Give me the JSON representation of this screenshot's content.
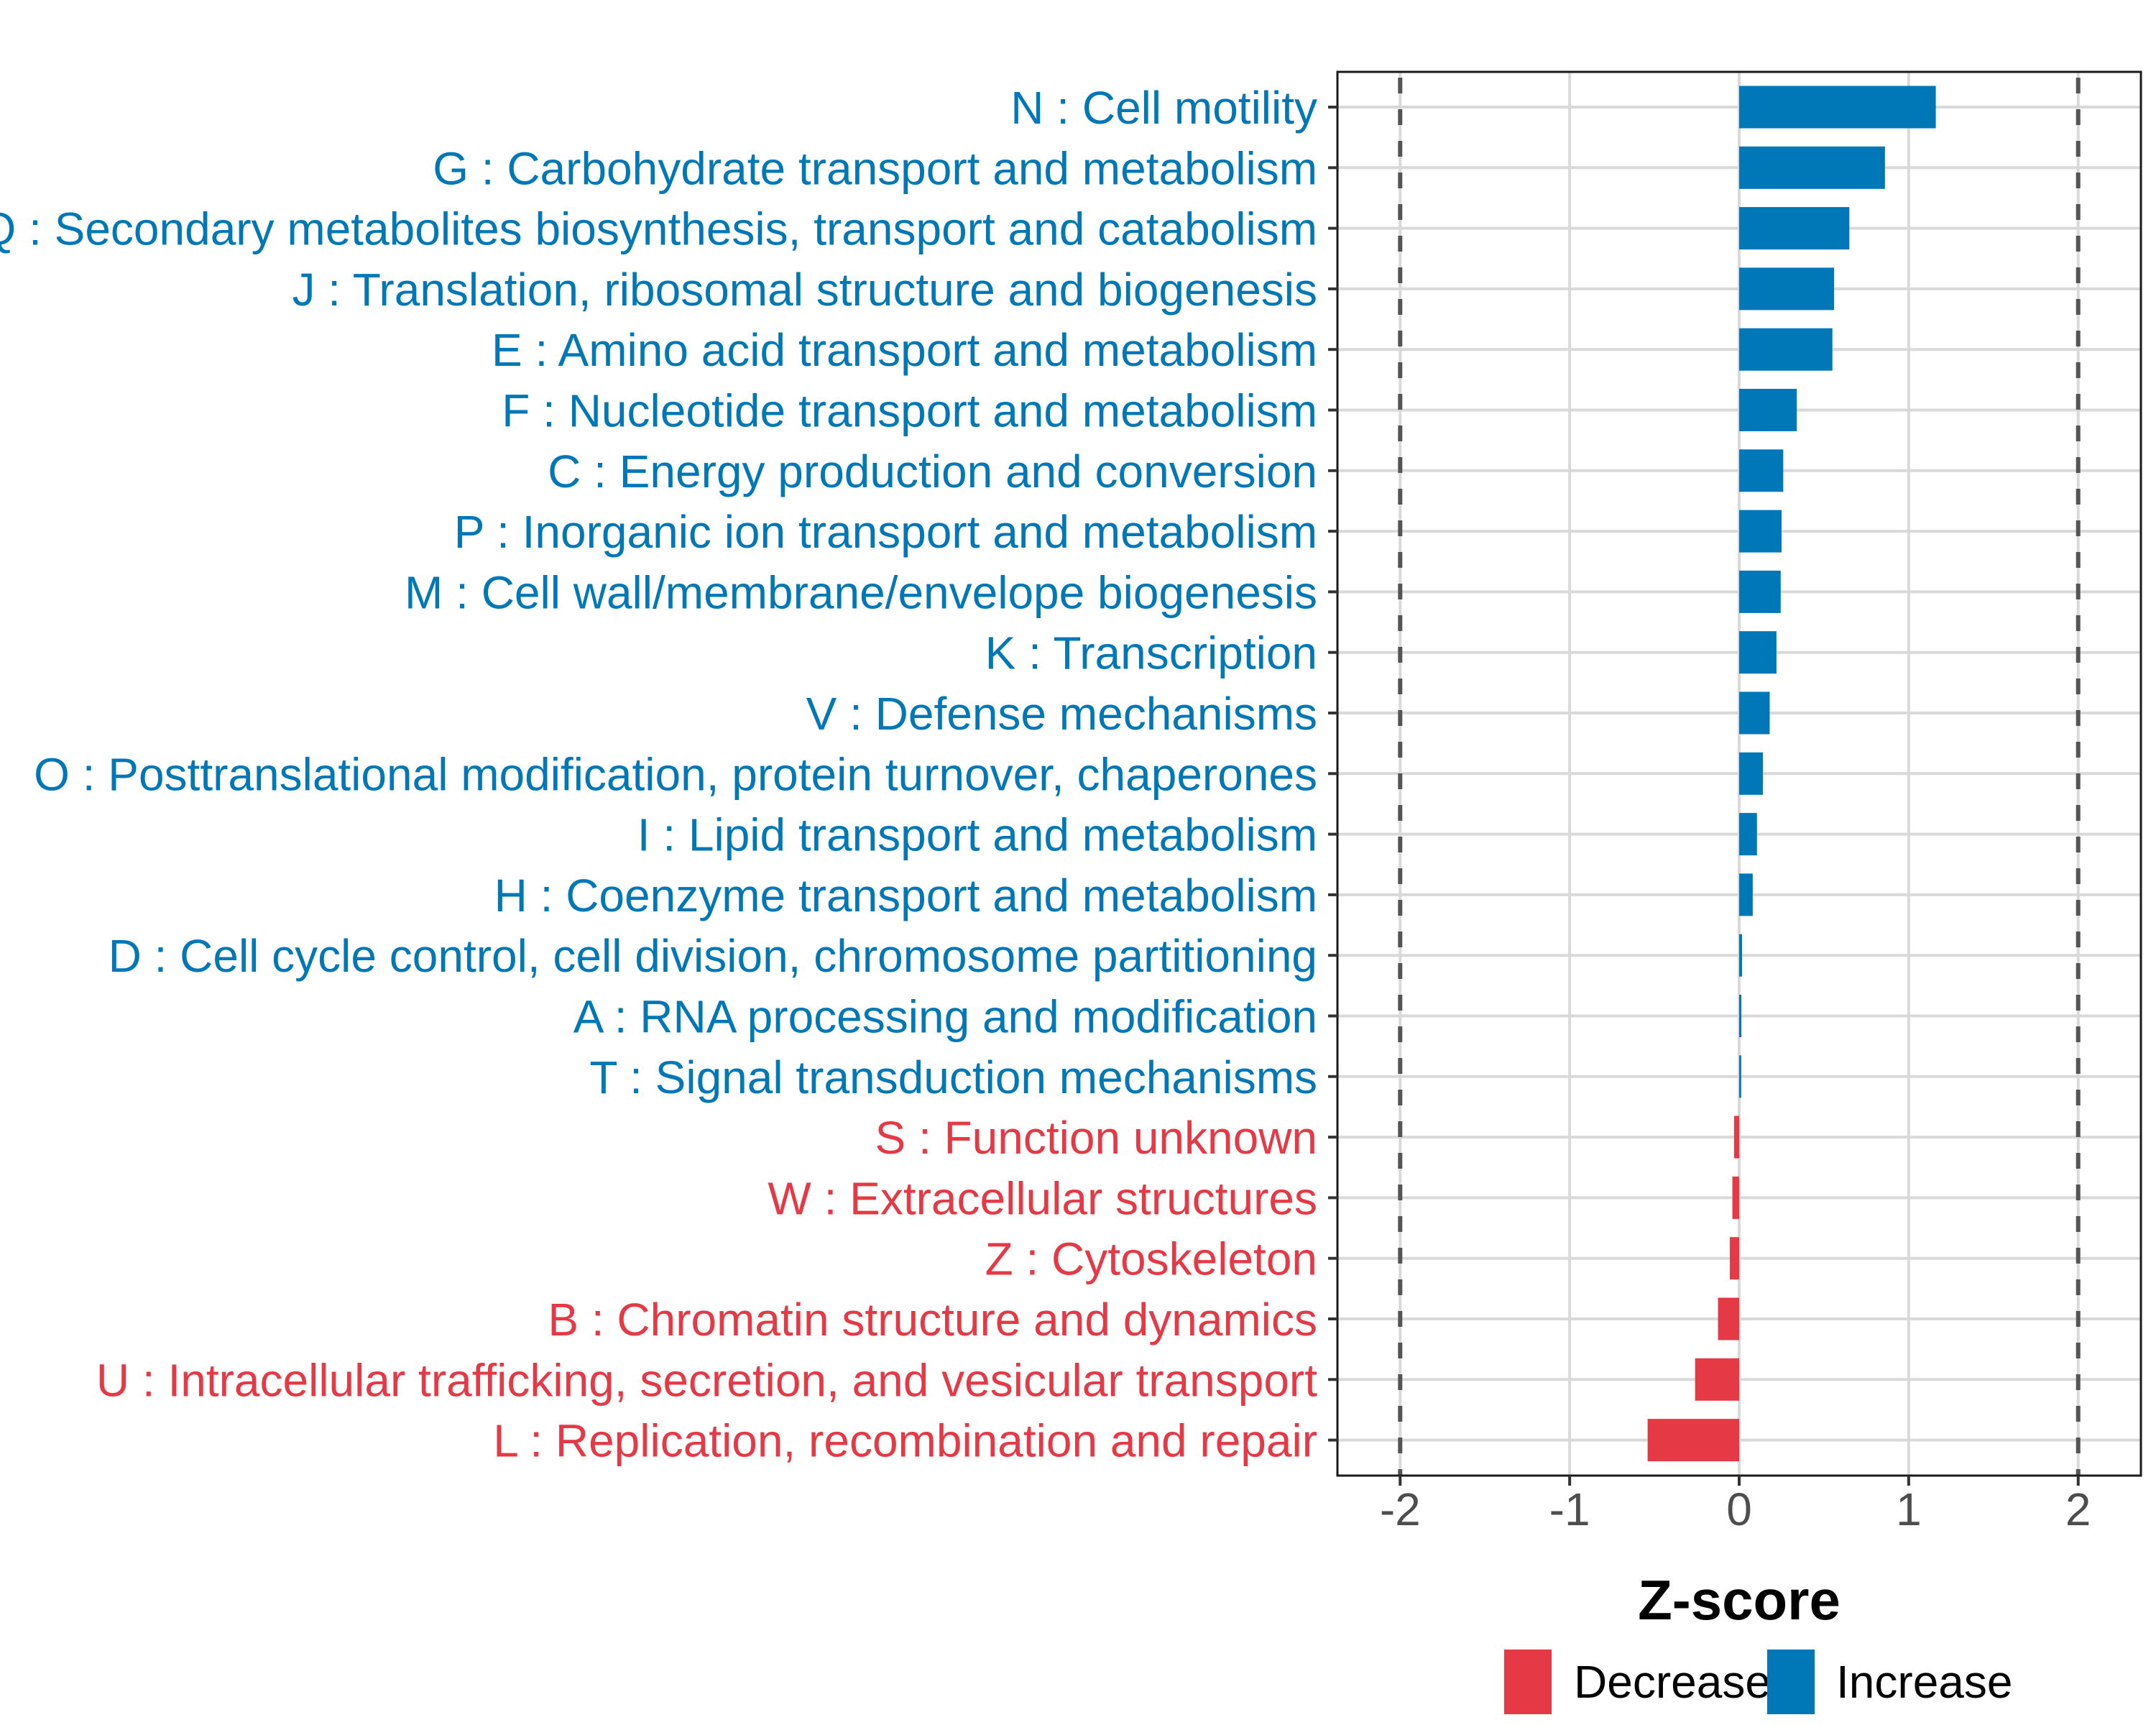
{
  "chart_data": {
    "type": "bar",
    "orientation": "horizontal",
    "title": "",
    "xlabel": "Z-score",
    "ylabel": "",
    "xlim": [
      -2.37,
      2.37
    ],
    "xticks": [
      -2,
      -1,
      0,
      1,
      2
    ],
    "xtick_labels": [
      "-2",
      "-1",
      "0",
      "1",
      "2"
    ],
    "reference_lines": [
      -2,
      2
    ],
    "grid": true,
    "legend": {
      "placement": "bottom",
      "entries": [
        {
          "label": "Decrease",
          "color": "#E63946"
        },
        {
          "label": "Increase",
          "color": "#0077B6"
        }
      ]
    },
    "categories": [
      "N : Cell motility",
      "G : Carbohydrate transport and metabolism",
      "Q : Secondary metabolites biosynthesis, transport and catabolism",
      "J : Translation, ribosomal structure and biogenesis",
      "E : Amino acid transport and metabolism",
      "F : Nucleotide transport and metabolism",
      "C : Energy production and conversion",
      "P : Inorganic ion transport and metabolism",
      "M : Cell wall/membrane/envelope biogenesis",
      "K : Transcription",
      "V : Defense mechanisms",
      "O : Posttranslational modification, protein turnover, chaperones",
      "I : Lipid transport and metabolism",
      "H : Coenzyme transport and metabolism",
      "D : Cell cycle control, cell division, chromosome partitioning",
      "A : RNA processing and modification",
      "T : Signal transduction mechanisms",
      "S : Function unknown",
      "W : Extracellular structures",
      "Z : Cytoskeleton",
      "B : Chromatin structure and dynamics",
      "U : Intracellular trafficking, secretion, and vesicular transport",
      "L : Replication, recombination and repair"
    ],
    "values": [
      1.16,
      0.86,
      0.65,
      0.56,
      0.55,
      0.34,
      0.26,
      0.25,
      0.245,
      0.22,
      0.18,
      0.14,
      0.105,
      0.08,
      0.017,
      0.013,
      0.012,
      -0.03,
      -0.04,
      -0.055,
      -0.125,
      -0.26,
      -0.54
    ],
    "groups": [
      "Increase",
      "Increase",
      "Increase",
      "Increase",
      "Increase",
      "Increase",
      "Increase",
      "Increase",
      "Increase",
      "Increase",
      "Increase",
      "Increase",
      "Increase",
      "Increase",
      "Increase",
      "Increase",
      "Increase",
      "Decrease",
      "Decrease",
      "Decrease",
      "Decrease",
      "Decrease",
      "Decrease"
    ]
  },
  "colors": {
    "Increase": "#0077B6",
    "Decrease": "#E63946"
  }
}
